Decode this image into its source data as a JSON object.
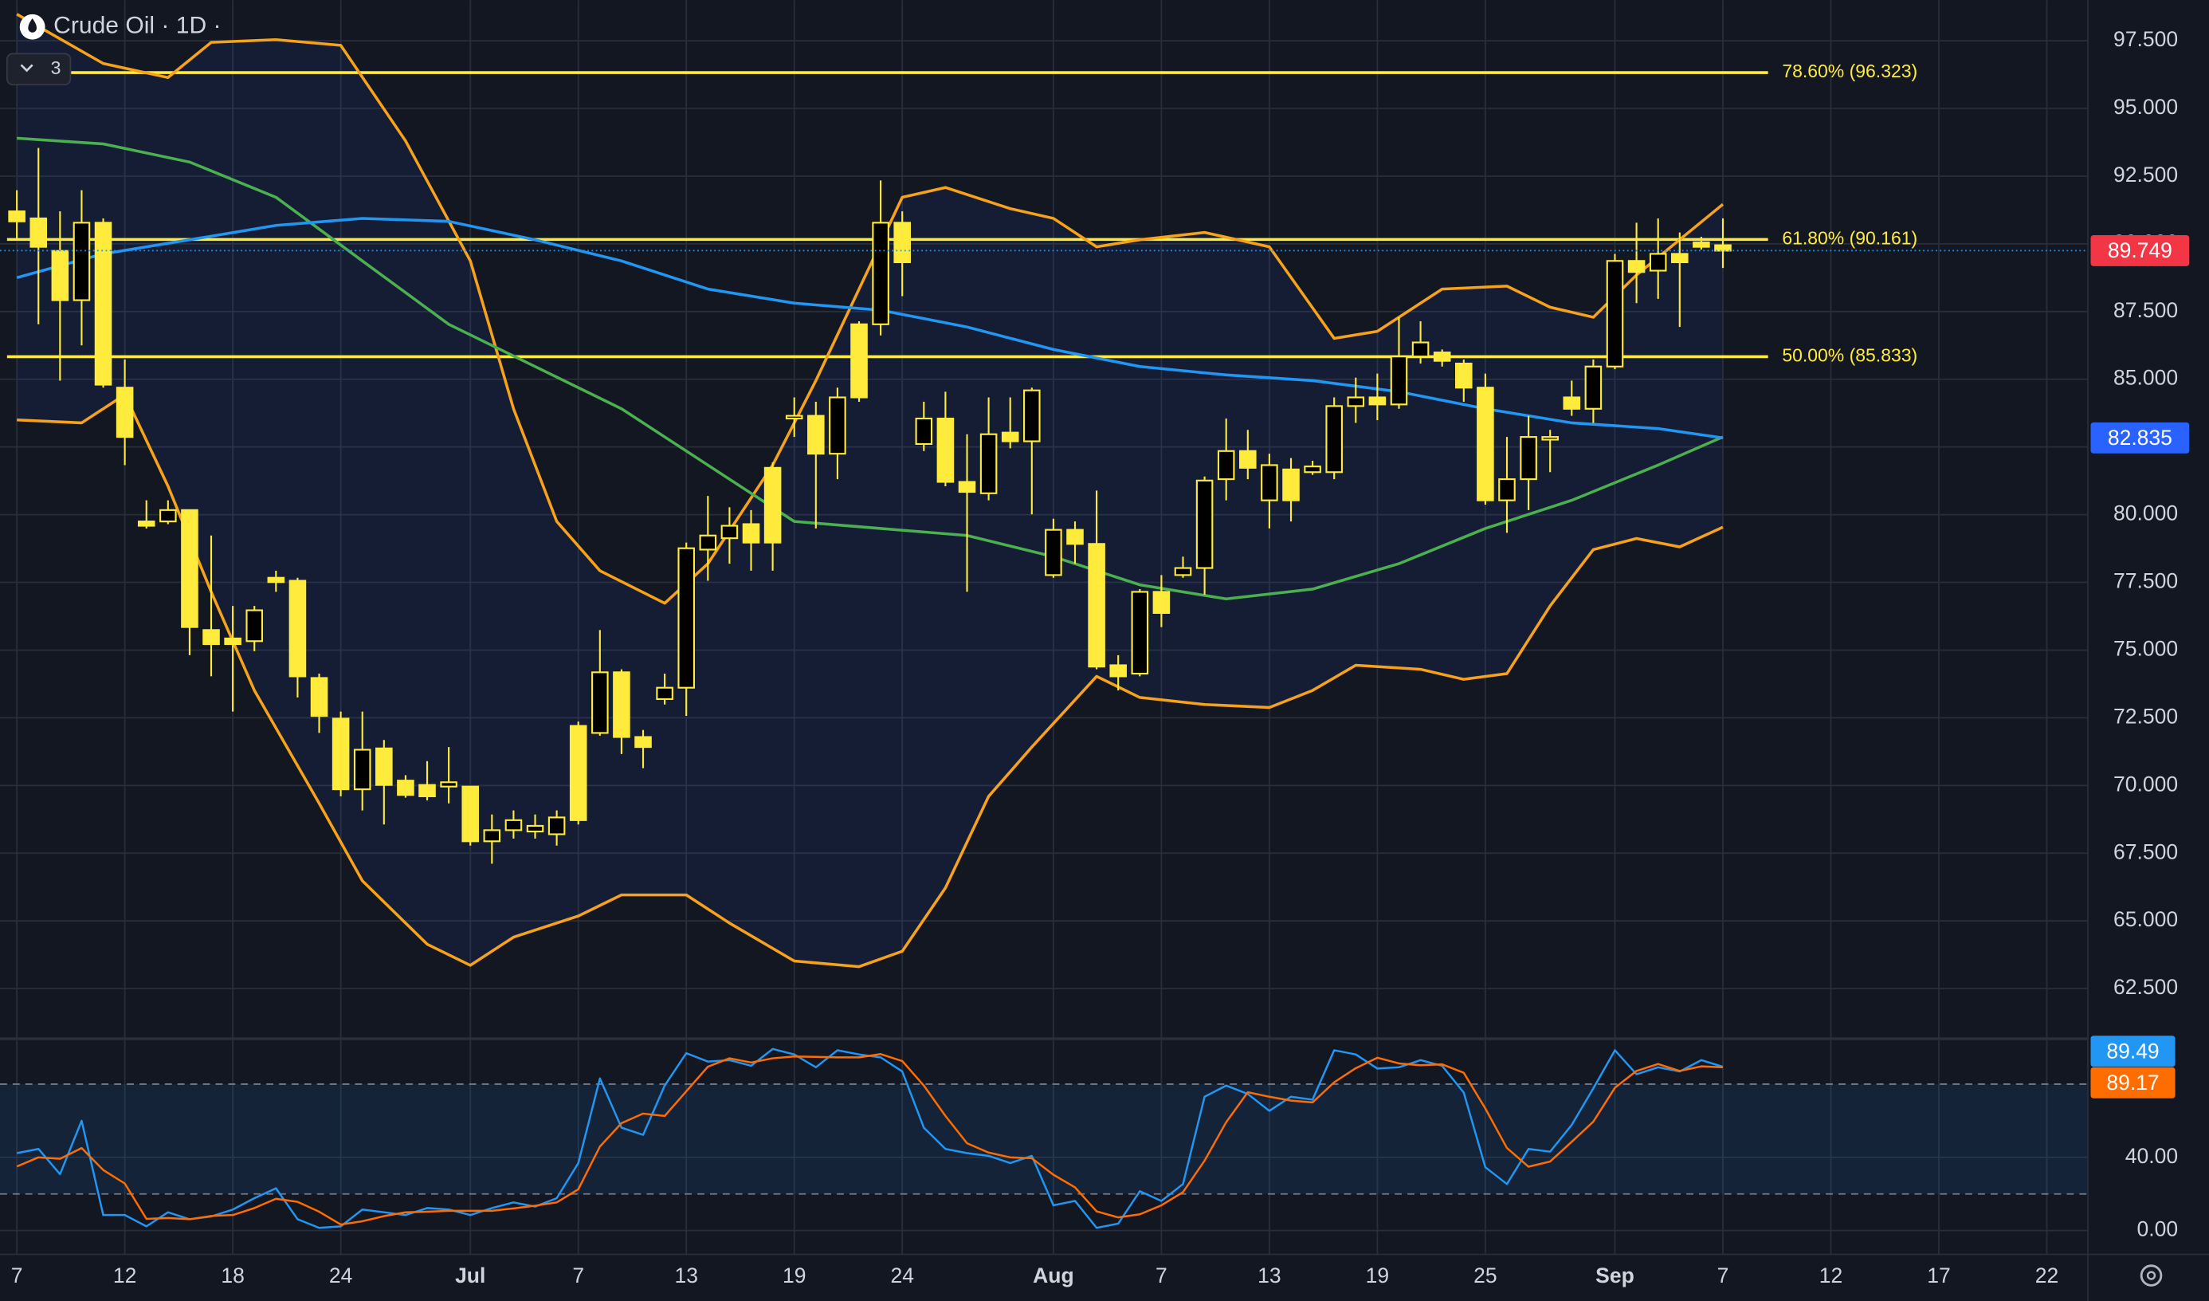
{
  "chart_data": [
    {
      "type": "candlestick",
      "title": "Crude Oil · 1D ·",
      "badge": 3,
      "color": "#ffeb3b",
      "grid": true,
      "xlim": [
        -0.78,
        95.9
      ],
      "xticks": [
        {
          "value": 0,
          "label": "7"
        },
        {
          "value": 5,
          "label": "12"
        },
        {
          "value": 10,
          "label": "18"
        },
        {
          "value": 15,
          "label": "24"
        },
        {
          "value": 21,
          "label": "Jul"
        },
        {
          "value": 26,
          "label": "7"
        },
        {
          "value": 31,
          "label": "13"
        },
        {
          "value": 36,
          "label": "19"
        },
        {
          "value": 41,
          "label": "24"
        },
        {
          "value": 48,
          "label": "Aug"
        },
        {
          "value": 53,
          "label": "7"
        },
        {
          "value": 58,
          "label": "13"
        },
        {
          "value": 63,
          "label": "19"
        },
        {
          "value": 68,
          "label": "25"
        },
        {
          "value": 74,
          "label": "Sep"
        },
        {
          "value": 79,
          "label": "7"
        },
        {
          "value": 84,
          "label": "12"
        },
        {
          "value": 89,
          "label": "17"
        },
        {
          "value": 94,
          "label": "22"
        }
      ],
      "ylim": [
        60.7,
        99.0
      ],
      "yticks": [
        {
          "value": 62.5,
          "label": "62.500"
        },
        {
          "value": 65,
          "label": "65.000"
        },
        {
          "value": 67.5,
          "label": "67.500"
        },
        {
          "value": 70,
          "label": "70.000"
        },
        {
          "value": 72.5,
          "label": "72.500"
        },
        {
          "value": 75,
          "label": "75.000"
        },
        {
          "value": 77.5,
          "label": "77.500"
        },
        {
          "value": 80,
          "label": "80.000"
        },
        {
          "value": 82.5,
          "label": "82.500"
        },
        {
          "value": 85,
          "label": "85.000"
        },
        {
          "value": 87.5,
          "label": "87.500"
        },
        {
          "value": 90,
          "label": "90.000"
        },
        {
          "value": 92.5,
          "label": "92.500"
        },
        {
          "value": 95,
          "label": "95.000"
        },
        {
          "value": 97.5,
          "label": "97.500"
        }
      ],
      "open": [
        91.2,
        90.94,
        89.74,
        87.92,
        90.78,
        84.69,
        79.75,
        79.75,
        80.17,
        75.74,
        75.43,
        75.33,
        77.67,
        77.56,
        73.97,
        72.47,
        69.86,
        71.37,
        70.18,
        70.02,
        69.96,
        69.96,
        67.94,
        68.35,
        68.3,
        68.2,
        72.2,
        71.94,
        74.18,
        71.79,
        73.19,
        73.61,
        78.71,
        79.13,
        79.65,
        81.73,
        83.55,
        83.65,
        82.25,
        87.03,
        87.03,
        90.78,
        82.61,
        83.55,
        81.21,
        80.79,
        83.03,
        82.71,
        77.77,
        79.44,
        78.92,
        74.44,
        74.13,
        77.15,
        77.77,
        78.03,
        81.31,
        82.35,
        80.53,
        81.67,
        81.57,
        81.57,
        84.01,
        84.33,
        84.07,
        85.84,
        85.99,
        85.58,
        84.69,
        80.53,
        81.31,
        82.77,
        84.33,
        83.91,
        85.47,
        89.37,
        89.01,
        89.63,
        90.05,
        89.95
      ],
      "high": [
        91.98,
        93.54,
        91.2,
        91.98,
        90.94,
        85.73,
        80.53,
        80.53,
        80.17,
        79.23,
        76.63,
        76.63,
        77.93,
        77.67,
        74.13,
        72.73,
        72.73,
        71.68,
        70.38,
        70.9,
        71.42,
        69.96,
        68.93,
        69.08,
        68.93,
        69.08,
        72.36,
        75.74,
        74.29,
        72.05,
        74.13,
        78.97,
        80.69,
        80.27,
        80.17,
        81.93,
        84.33,
        84.17,
        84.69,
        87.14,
        92.34,
        91.2,
        84.17,
        84.54,
        82.97,
        84.33,
        84.33,
        84.69,
        79.85,
        79.75,
        80.89,
        74.81,
        77.25,
        77.77,
        78.45,
        81.41,
        83.55,
        83.13,
        82.25,
        82.09,
        81.99,
        84.33,
        85.06,
        85.21,
        87.29,
        87.14,
        86.1,
        85.73,
        85.21,
        82.87,
        83.65,
        83.13,
        84.95,
        85.73,
        89.63,
        90.78,
        90.94,
        90.42,
        90.26,
        90.94
      ],
      "low": [
        90.15,
        87.03,
        84.95,
        86.25,
        84.69,
        81.83,
        79.49,
        79.65,
        74.81,
        74.03,
        72.73,
        74.96,
        77.15,
        73.25,
        71.94,
        69.6,
        69.08,
        68.56,
        69.55,
        69.45,
        69.34,
        67.78,
        67.11,
        68.04,
        68.04,
        67.78,
        68.56,
        71.84,
        71.16,
        70.64,
        72.99,
        72.57,
        77.56,
        78.19,
        77.93,
        77.93,
        82.87,
        79.49,
        81.31,
        84.17,
        86.62,
        88.07,
        82.35,
        81.05,
        77.15,
        80.53,
        82.45,
        80.01,
        77.67,
        78.19,
        74.29,
        73.51,
        74.03,
        75.85,
        77.67,
        77.04,
        80.53,
        81.31,
        79.49,
        79.75,
        81.47,
        81.31,
        83.39,
        83.49,
        83.91,
        85.58,
        85.47,
        84.17,
        80.37,
        79.33,
        80.17,
        81.57,
        83.65,
        83.39,
        85.37,
        87.81,
        87.97,
        86.93,
        89.79,
        89.11
      ],
      "close": [
        90.83,
        89.89,
        87.92,
        90.78,
        84.8,
        82.87,
        79.59,
        80.17,
        75.85,
        75.22,
        75.22,
        76.47,
        77.51,
        74.03,
        72.57,
        69.86,
        71.32,
        70.02,
        69.65,
        69.6,
        70.12,
        67.94,
        68.35,
        68.72,
        68.51,
        68.82,
        68.72,
        74.18,
        71.79,
        71.42,
        73.61,
        78.76,
        79.23,
        79.59,
        78.97,
        78.97,
        83.65,
        82.25,
        84.33,
        84.33,
        90.78,
        89.32,
        83.55,
        81.21,
        80.84,
        82.97,
        82.71,
        84.59,
        79.44,
        78.92,
        74.39,
        74.03,
        77.15,
        76.37,
        78.03,
        81.26,
        82.35,
        81.73,
        81.83,
        80.53,
        81.78,
        84.01,
        84.33,
        84.07,
        85.84,
        86.36,
        85.68,
        84.69,
        80.53,
        81.31,
        82.87,
        82.87,
        83.91,
        85.47,
        89.37,
        88.96,
        89.63,
        89.32,
        89.89,
        89.749
      ],
      "last_price_color": "#f23645",
      "band_color": "rgba(41,98,255,0.08)",
      "series": [
        {
          "color": "#f7a21b",
          "x": [
            0,
            4,
            7,
            9,
            12,
            15,
            18,
            21,
            23,
            25,
            27,
            30,
            32,
            35,
            37,
            39,
            41,
            43,
            46,
            48,
            50,
            52,
            55,
            58,
            61,
            63,
            66,
            69,
            71,
            73,
            75,
            79
          ],
          "values": [
            98.48,
            96.66,
            96.14,
            97.44,
            97.54,
            97.33,
            93.8,
            89.37,
            83.91,
            79.75,
            77.93,
            76.73,
            78.19,
            81.83,
            84.95,
            88.33,
            91.72,
            92.08,
            91.3,
            90.94,
            89.89,
            90.15,
            90.42,
            89.89,
            86.51,
            86.77,
            88.33,
            88.44,
            87.66,
            87.29,
            88.85,
            91.46
          ]
        },
        {
          "color": "#4caf50",
          "x": [
            0,
            4,
            8,
            12,
            16,
            20,
            24,
            28,
            32,
            36,
            40,
            44,
            48,
            52,
            56,
            60,
            64,
            68,
            72,
            76,
            79
          ],
          "values": [
            93.9,
            93.69,
            93.02,
            91.72,
            89.37,
            87.03,
            85.47,
            83.91,
            81.83,
            79.75,
            79.49,
            79.23,
            78.45,
            77.41,
            76.89,
            77.25,
            78.19,
            79.49,
            80.53,
            81.83,
            82.87
          ]
        },
        {
          "color": "#f7a21b",
          "x": [
            0,
            3,
            5,
            7,
            9,
            11,
            14,
            16,
            19,
            21,
            23,
            26,
            28,
            31,
            33,
            36,
            39,
            41,
            43,
            45,
            47,
            50,
            52,
            55,
            58,
            60,
            62,
            65,
            67,
            69,
            71,
            73,
            75,
            77,
            79
          ],
          "values": [
            83.5,
            83.39,
            84.43,
            81.05,
            77.15,
            73.51,
            69.34,
            66.48,
            64.14,
            63.36,
            64.4,
            65.18,
            65.96,
            65.96,
            64.92,
            63.52,
            63.31,
            63.88,
            66.22,
            69.6,
            71.42,
            74.03,
            73.25,
            72.99,
            72.88,
            73.51,
            74.44,
            74.29,
            73.92,
            74.13,
            76.63,
            78.71,
            79.12,
            78.81,
            79.54
          ]
        },
        {
          "color": "#2196f3",
          "label_color": "#2962ff",
          "x": [
            0,
            4,
            8,
            12,
            16,
            20,
            24,
            28,
            32,
            36,
            40,
            44,
            48,
            52,
            56,
            60,
            64,
            68,
            72,
            76,
            79
          ],
          "values": [
            88.75,
            89.63,
            90.15,
            90.68,
            90.94,
            90.83,
            90.15,
            89.37,
            88.33,
            87.81,
            87.55,
            86.93,
            86.1,
            85.47,
            85.16,
            84.95,
            84.54,
            83.91,
            83.39,
            83.18,
            82.835
          ]
        }
      ],
      "levels": [
        {
          "label": "78.60% (96.323)",
          "value": 96.323,
          "color": "#ffeb3b"
        },
        {
          "label": "61.80% (90.161)",
          "value": 90.161,
          "color": "#ffeb3b"
        },
        {
          "label": "50.00% (85.833)",
          "value": 85.833,
          "color": "#ffeb3b"
        }
      ]
    },
    {
      "type": "line",
      "ylim": [
        -13,
        104
      ],
      "yticks": [
        {
          "value": 0,
          "label": "0.00"
        },
        {
          "value": 40,
          "label": "40.00"
        }
      ],
      "bands": [
        20,
        80
      ],
      "band_color": "rgba(33,150,243,0.1)",
      "series": [
        {
          "color": "#2196f3",
          "values": [
            42.3,
            44.6,
            30.8,
            60.0,
            8.5,
            8.5,
            2.3,
            10.0,
            6.2,
            7.7,
            11.5,
            17.7,
            23.1,
            6.2,
            1.5,
            2.3,
            11.5,
            10.0,
            8.5,
            12.3,
            11.5,
            8.5,
            12.3,
            15.4,
            13.1,
            17.7,
            36.9,
            83.1,
            56.2,
            52.3,
            79.2,
            96.9,
            92.3,
            93.1,
            90.0,
            99.2,
            96.2,
            89.2,
            98.5,
            96.2,
            94.6,
            86.9,
            56.2,
            44.6,
            42.3,
            40.8,
            36.9,
            40.8,
            13.8,
            16.2,
            1.5,
            3.8,
            21.5,
            16.2,
            25.4,
            73.1,
            79.2,
            74.6,
            65.4,
            73.1,
            71.5,
            98.5,
            96.2,
            88.5,
            89.2,
            93.1,
            90.0,
            75.4,
            34.6,
            25.4,
            44.6,
            43.1,
            57.7,
            77.7,
            98.5,
            85.4,
            89.2,
            86.9,
            93.1,
            89.49
          ]
        },
        {
          "color": "#ff6d00",
          "values": [
            35,
            40,
            39.2,
            45.1,
            33.1,
            25.7,
            6.4,
            6.9,
            6.2,
            8.0,
            8.5,
            12.3,
            17.4,
            15.7,
            10.3,
            3.3,
            5.1,
            7.9,
            10.0,
            10.3,
            10.8,
            10.8,
            10.8,
            12.1,
            13.6,
            15.4,
            22.6,
            45.9,
            58.7,
            63.9,
            62.6,
            76.1,
            89.5,
            94.1,
            91.8,
            94.1,
            95.1,
            94.9,
            94.6,
            94.6,
            96.4,
            92.6,
            79.2,
            62.6,
            47.7,
            42.6,
            40.0,
            39.5,
            30.5,
            23.6,
            10.5,
            7.2,
            8.9,
            13.8,
            21.0,
            38.2,
            59.2,
            75.6,
            73.1,
            71.0,
            70.0,
            81.0,
            88.7,
            94.4,
            91.3,
            90.3,
            90.8,
            86.2,
            66.7,
            45.1,
            34.9,
            37.7,
            48.5,
            59.5,
            78.0,
            87.2,
            91.0,
            87.2,
            89.7,
            89.17
          ]
        }
      ]
    }
  ]
}
